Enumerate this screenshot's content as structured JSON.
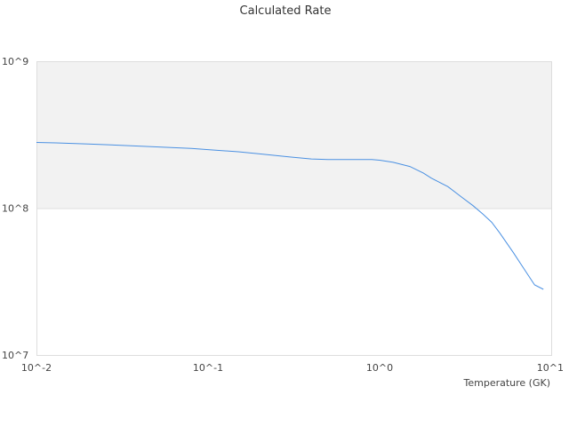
{
  "chart_data": {
    "type": "line",
    "title": "Calculated Rate",
    "xlabel": "Temperature (GK)",
    "ylabel": "",
    "x_scale": "log",
    "y_scale": "log",
    "xlim": [
      0.01,
      10
    ],
    "ylim": [
      10000000,
      1000000000
    ],
    "x_ticks": [
      "10^-2",
      "10^-1",
      "10^0",
      "10^1"
    ],
    "y_ticks": [
      "10^7",
      "10^8",
      "10^9"
    ],
    "grid": false,
    "band": {
      "from": 100000000,
      "to": 1000000000,
      "color": "#f2f2f2"
    },
    "series": [
      {
        "color": "#4a90e2",
        "x": [
          0.01,
          0.013,
          0.02,
          0.03,
          0.05,
          0.08,
          0.1,
          0.15,
          0.2,
          0.3,
          0.4,
          0.5,
          0.7,
          0.9,
          1.0,
          1.2,
          1.5,
          1.8,
          2.0,
          2.5,
          3.0,
          3.5,
          4.0,
          4.5,
          5.0,
          6.0,
          7.0,
          8.0,
          9.0
        ],
        "y": [
          280000000,
          278000000,
          273000000,
          268000000,
          261000000,
          255000000,
          250000000,
          242000000,
          234000000,
          223000000,
          216000000,
          214000000,
          214000000,
          214000000,
          212000000,
          205000000,
          192000000,
          173000000,
          160000000,
          140000000,
          119000000,
          104000000,
          91000000,
          80000000,
          68000000,
          50000000,
          38000000,
          30000000,
          28000000
        ]
      }
    ]
  }
}
